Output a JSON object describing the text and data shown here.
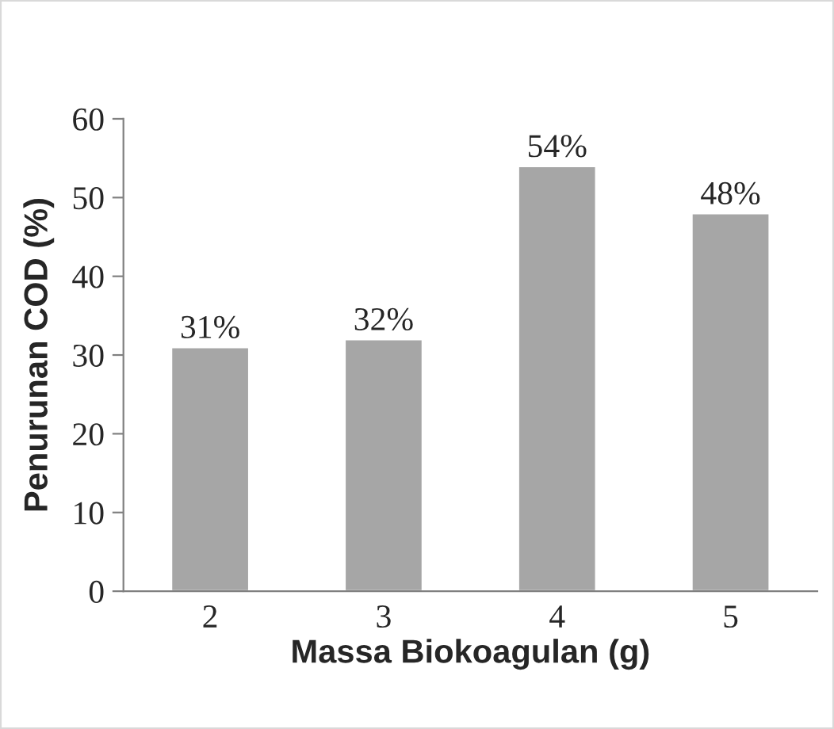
{
  "chart_data": {
    "type": "bar",
    "xlabel": "Massa Biokoagulan (g)",
    "ylabel": "Penurunan COD (%)",
    "categories": [
      "2",
      "3",
      "4",
      "5"
    ],
    "values": [
      31,
      32,
      54,
      48
    ],
    "value_labels": [
      "31%",
      "32%",
      "54%",
      "48%"
    ],
    "color": "#a6a6a6",
    "ylim": [
      0,
      60
    ],
    "yticks": [
      0,
      10,
      20,
      30,
      40,
      50,
      60
    ],
    "grid": false
  }
}
